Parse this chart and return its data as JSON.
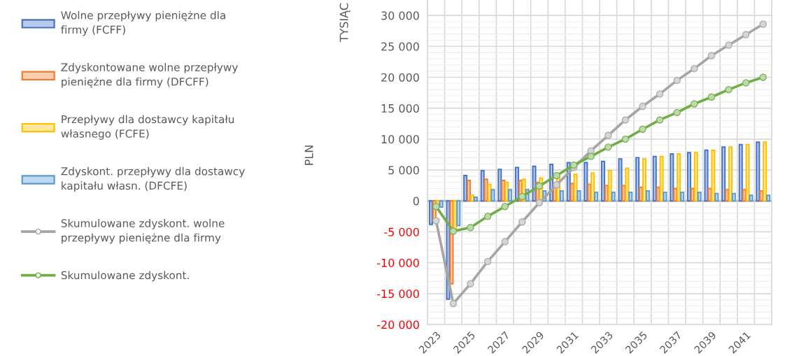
{
  "chart_data": {
    "type": "bar",
    "annotations": [
      "TYSIĄC",
      "PLN"
    ],
    "categories": [
      "2023",
      null,
      "2025",
      null,
      "2027",
      null,
      "2029",
      null,
      "2031",
      null,
      "2033",
      null,
      "2035",
      null,
      "2037",
      null,
      "2039",
      null,
      "2041",
      null
    ],
    "series": [
      {
        "name": "Wolne przepływy pieniężne dla\nfirmy (FCFF)",
        "color": "#4472c4",
        "values": [
          -3800,
          -15900,
          4100,
          4900,
          5100,
          5400,
          5600,
          5900,
          6200,
          6200,
          6400,
          6800,
          7000,
          7200,
          7600,
          7800,
          8200,
          8700,
          9100,
          9500
        ]
      },
      {
        "name": "Zdyskontowane wolne przepływy\npieniężne dla firmy (DFCFF)",
        "color": "#ed7d31",
        "values": [
          -3200,
          -13400,
          3300,
          3500,
          3300,
          3300,
          3000,
          2800,
          2800,
          2700,
          2500,
          2500,
          2200,
          2200,
          2000,
          2000,
          2000,
          1800,
          1800,
          1600
        ]
      },
      {
        "name": "Przepływy dla dostawcy kapitału\nwłasnego (FCFE)",
        "color": "#ffc000",
        "values": [
          -600,
          -4800,
          900,
          2700,
          3000,
          3500,
          3700,
          4000,
          4300,
          4500,
          4900,
          5300,
          6800,
          7200,
          7600,
          7800,
          8200,
          8700,
          9100,
          9500
        ]
      },
      {
        "name": "Zdyskont. przepływy dla dostawcy\nkapitału własn. (DFCFE)",
        "color": "#5b9bd5",
        "values": [
          -1000,
          -4000,
          600,
          1800,
          1800,
          1800,
          1600,
          1600,
          1600,
          1400,
          1400,
          1400,
          1600,
          1400,
          1400,
          1400,
          1200,
          1200,
          900,
          900
        ]
      },
      {
        "name": "Skumulowane zdyskont. wolne\nprzepływy pieniężne dla firmy",
        "type": "line",
        "color": "#a5a5a5",
        "values": [
          -3200,
          -16600,
          -13400,
          -9800,
          -6600,
          -3400,
          -300,
          2600,
          5400,
          8100,
          10600,
          13100,
          15300,
          17300,
          19500,
          21400,
          23500,
          25200,
          26900,
          28600
        ]
      },
      {
        "name": "Skumulowane zdyskont.",
        "type": "line",
        "color": "#70ad47",
        "values": [
          -900,
          -4900,
          -4300,
          -2500,
          -900,
          700,
          2400,
          4100,
          5800,
          7200,
          8700,
          10000,
          11600,
          13100,
          14300,
          15700,
          16800,
          18000,
          19100,
          20000
        ]
      }
    ],
    "ylim": [
      -20000,
      32500
    ],
    "yticks": [
      {
        "value": -20000,
        "label": "-20 000"
      },
      {
        "value": -15000,
        "label": "-15 000"
      },
      {
        "value": -10000,
        "label": "-10 000"
      },
      {
        "value": -5000,
        "label": "-5 000"
      },
      0,
      {
        "value": 5000,
        "label": "5 000"
      },
      {
        "value": 10000,
        "label": "10 000"
      },
      {
        "value": 15000,
        "label": "15 000"
      },
      {
        "value": 20000,
        "label": "20 000"
      },
      {
        "value": 25000,
        "label": "25 000"
      },
      {
        "value": 30000,
        "label": "30 000"
      }
    ],
    "ref_lines": [
      {
        "axis": "y",
        "value": 0,
        "color": "#bfbfbf"
      }
    ],
    "grid": true,
    "legend": "left",
    "marker": "circle",
    "line_style": "solid"
  }
}
